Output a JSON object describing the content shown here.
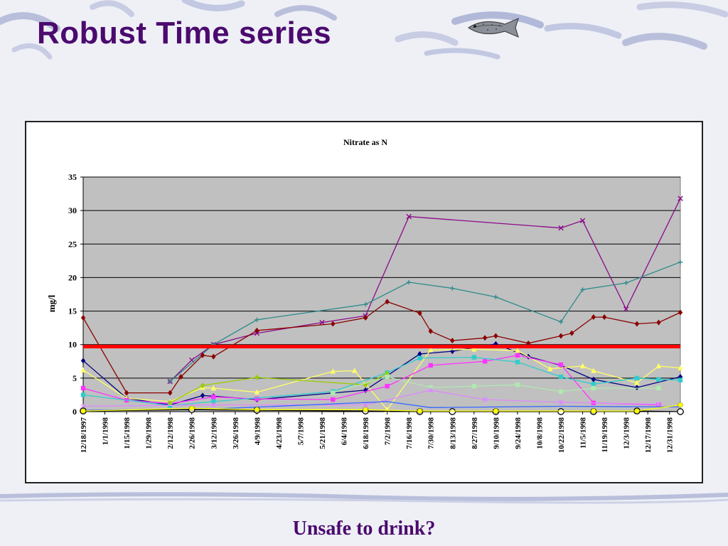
{
  "slide": {
    "title": "Robust Time series",
    "caption": "Unsafe to drink?",
    "title_color": "#4b0a6e"
  },
  "chart_data": {
    "type": "line",
    "title": "Nitrate as N",
    "ylabel": "mg/l",
    "xlabel": "",
    "ylim": [
      0,
      35
    ],
    "yticks": [
      0,
      5,
      10,
      15,
      20,
      25,
      30,
      35
    ],
    "grid": true,
    "legend": "none",
    "plot_background": "#c0c0c0",
    "threshold": {
      "value": 9.7,
      "color": "#ff0000"
    },
    "xticks": [
      "12/18/1997",
      "1/1/1998",
      "1/15/1998",
      "1/29/1998",
      "2/12/1998",
      "2/26/1998",
      "3/12/1998",
      "3/26/1998",
      "4/9/1998",
      "4/23/1998",
      "5/7/1998",
      "5/21/1998",
      "6/4/1998",
      "6/18/1998",
      "7/2/1998",
      "7/16/1998",
      "7/30/1998",
      "8/13/1998",
      "8/27/1998",
      "9/10/1998",
      "9/24/1998",
      "10/8/1998",
      "10/22/1998",
      "11/5/1998",
      "11/19/1998",
      "12/3/1998",
      "12/17/1998",
      "12/31/1998"
    ],
    "series": [
      {
        "color": "#8b0a8b",
        "marker": "x",
        "points": [
          [
            "2/12/1998",
            4.5
          ],
          [
            "2/26/1998",
            7.7
          ],
          [
            "3/12/1998",
            10.0
          ],
          [
            "4/9/1998",
            11.7
          ],
          [
            "5/21/1998",
            13.3
          ],
          [
            "6/18/1998",
            14.3
          ],
          [
            "7/16/1998",
            29.1
          ],
          [
            "10/22/1998",
            27.4
          ],
          [
            "11/5/1998",
            28.5
          ],
          [
            "12/3/1998",
            15.3
          ],
          [
            "1/7/1999",
            31.8
          ]
        ]
      },
      {
        "color": "#2e8b8b",
        "marker": "plus",
        "points": [
          [
            "2/12/1998",
            4.5
          ],
          [
            "3/12/1998",
            10.0
          ],
          [
            "4/9/1998",
            13.7
          ],
          [
            "6/18/1998",
            16.0
          ],
          [
            "7/16/1998",
            19.3
          ],
          [
            "8/13/1998",
            18.4
          ],
          [
            "9/10/1998",
            17.1
          ],
          [
            "10/22/1998",
            13.4
          ],
          [
            "11/5/1998",
            18.2
          ],
          [
            "12/3/1998",
            19.2
          ],
          [
            "1/7/1999",
            22.3
          ]
        ]
      },
      {
        "color": "#8b0000",
        "marker": "diamond",
        "points": [
          [
            "12/18/1997",
            14.0
          ],
          [
            "1/15/1998",
            2.8
          ],
          [
            "2/12/1998",
            2.8
          ],
          [
            "2/19/1998",
            5.2
          ],
          [
            "3/5/1998",
            8.4
          ],
          [
            "3/12/1998",
            8.2
          ],
          [
            "4/9/1998",
            12.1
          ],
          [
            "5/28/1998",
            13.1
          ],
          [
            "6/18/1998",
            14.0
          ],
          [
            "7/2/1998",
            16.4
          ],
          [
            "7/23/1998",
            14.7
          ],
          [
            "7/30/1998",
            12.0
          ],
          [
            "8/13/1998",
            10.6
          ],
          [
            "9/3/1998",
            11.0
          ],
          [
            "9/10/1998",
            11.3
          ],
          [
            "10/1/1998",
            10.2
          ],
          [
            "10/22/1998",
            11.3
          ],
          [
            "10/29/1998",
            11.7
          ],
          [
            "11/12/1998",
            14.1
          ],
          [
            "11/19/1998",
            14.1
          ],
          [
            "12/10/1998",
            13.1
          ],
          [
            "12/24/1998",
            13.3
          ],
          [
            "1/7/1999",
            14.8
          ]
        ]
      },
      {
        "color": "#000080",
        "marker": "diamond",
        "points": [
          [
            "12/18/1997",
            7.6
          ],
          [
            "1/15/1998",
            2.0
          ],
          [
            "2/12/1998",
            1.0
          ],
          [
            "3/5/1998",
            2.4
          ],
          [
            "3/12/1998",
            2.3
          ],
          [
            "4/9/1998",
            1.8
          ],
          [
            "6/18/1998",
            3.2
          ],
          [
            "7/23/1998",
            8.6
          ],
          [
            "8/13/1998",
            9.0
          ],
          [
            "9/10/1998",
            10.1
          ],
          [
            "10/1/1998",
            8.2
          ],
          [
            "10/22/1998",
            6.9
          ],
          [
            "11/12/1998",
            4.8
          ],
          [
            "12/10/1998",
            3.6
          ],
          [
            "1/7/1999",
            5.2
          ]
        ]
      },
      {
        "color": "#ffff66",
        "marker": "triangle",
        "points": [
          [
            "12/18/1997",
            6.2
          ],
          [
            "1/15/1998",
            2.0
          ],
          [
            "2/12/1998",
            1.5
          ],
          [
            "3/5/1998",
            3.6
          ],
          [
            "3/12/1998",
            3.5
          ],
          [
            "4/9/1998",
            2.9
          ],
          [
            "5/28/1998",
            6.0
          ],
          [
            "6/11/1998",
            6.1
          ],
          [
            "7/2/1998",
            0.3
          ],
          [
            "7/30/1998",
            9.2
          ],
          [
            "8/27/1998",
            9.3
          ],
          [
            "9/24/1998",
            9.1
          ],
          [
            "10/15/1998",
            6.4
          ],
          [
            "11/5/1998",
            6.8
          ],
          [
            "11/12/1998",
            6.1
          ],
          [
            "12/10/1998",
            4.3
          ],
          [
            "12/24/1998",
            6.8
          ],
          [
            "1/7/1999",
            6.5
          ]
        ]
      },
      {
        "color": "#ff33ff",
        "marker": "square",
        "points": [
          [
            "12/18/1997",
            3.5
          ],
          [
            "1/15/1998",
            1.7
          ],
          [
            "2/12/1998",
            1.2
          ],
          [
            "3/12/1998",
            2.2
          ],
          [
            "4/9/1998",
            1.9
          ],
          [
            "5/28/1998",
            1.8
          ],
          [
            "7/2/1998",
            3.8
          ],
          [
            "7/30/1998",
            6.9
          ],
          [
            "9/3/1998",
            7.5
          ],
          [
            "9/24/1998",
            8.4
          ],
          [
            "10/22/1998",
            7.0
          ],
          [
            "11/12/1998",
            1.3
          ],
          [
            "12/24/1998",
            1.0
          ]
        ]
      },
      {
        "color": "#33cccc",
        "marker": "square",
        "points": [
          [
            "12/18/1997",
            2.5
          ],
          [
            "2/12/1998",
            0.9
          ],
          [
            "3/12/1998",
            1.5
          ],
          [
            "5/28/1998",
            3.0
          ],
          [
            "7/2/1998",
            5.8
          ],
          [
            "7/23/1998",
            8.0
          ],
          [
            "8/27/1998",
            8.1
          ],
          [
            "9/24/1998",
            7.4
          ],
          [
            "10/22/1998",
            5.2
          ],
          [
            "11/12/1998",
            4.1
          ],
          [
            "12/10/1998",
            5.0
          ],
          [
            "12/24/1998",
            4.8
          ],
          [
            "1/7/1999",
            4.7
          ]
        ]
      },
      {
        "color": "#99cc00",
        "marker": "diamond",
        "points": [
          [
            "2/12/1998",
            1.3
          ],
          [
            "3/5/1998",
            3.9
          ],
          [
            "4/9/1998",
            5.1
          ],
          [
            "6/18/1998",
            4.0
          ],
          [
            "7/2/1998",
            5.7
          ]
        ]
      },
      {
        "color": "#b0e8b0",
        "marker": "square",
        "points": [
          [
            "5/28/1998",
            2.8
          ],
          [
            "7/2/1998",
            5.2
          ],
          [
            "7/30/1998",
            3.6
          ],
          [
            "8/27/1998",
            3.8
          ],
          [
            "9/24/1998",
            4.0
          ],
          [
            "10/22/1998",
            3.0
          ],
          [
            "11/12/1998",
            3.5
          ],
          [
            "12/24/1998",
            3.5
          ]
        ]
      },
      {
        "color": "#dd88ff",
        "marker": "asterisk",
        "points": [
          [
            "12/18/1997",
            0.8
          ],
          [
            "3/12/1998",
            1.0
          ],
          [
            "6/18/1998",
            1.0
          ],
          [
            "7/30/1998",
            3.2
          ],
          [
            "9/3/1998",
            1.8
          ],
          [
            "10/22/1998",
            1.4
          ],
          [
            "12/24/1998",
            1.1
          ]
        ]
      },
      {
        "color": "#3366ff",
        "marker": "none",
        "points": [
          [
            "12/18/1997",
            0.2
          ],
          [
            "3/12/1998",
            0.4
          ],
          [
            "7/2/1998",
            1.5
          ],
          [
            "7/30/1998",
            0.6
          ],
          [
            "10/22/1998",
            0.8
          ],
          [
            "1/7/1999",
            0.7
          ]
        ]
      },
      {
        "color": "#000000",
        "marker": "circle-open",
        "points": [
          [
            "12/18/1997",
            0.1
          ],
          [
            "2/26/1998",
            0.3
          ],
          [
            "4/9/1998",
            0.2
          ],
          [
            "6/18/1998",
            0.1
          ],
          [
            "7/23/1998",
            0.0
          ],
          [
            "8/13/1998",
            0.0
          ],
          [
            "9/10/1998",
            0.0
          ],
          [
            "10/22/1998",
            0.0
          ],
          [
            "11/12/1998",
            0.0
          ],
          [
            "12/10/1998",
            0.1
          ],
          [
            "1/7/1999",
            0.0
          ]
        ]
      },
      {
        "color": "#ffff00",
        "marker": "circle",
        "points": [
          [
            "12/18/1997",
            0.1
          ],
          [
            "2/26/1998",
            0.5
          ],
          [
            "4/9/1998",
            0.3
          ],
          [
            "6/18/1998",
            0.3
          ],
          [
            "7/23/1998",
            0.1
          ],
          [
            "9/10/1998",
            0.1
          ],
          [
            "11/12/1998",
            0.1
          ],
          [
            "12/10/1998",
            0.1
          ],
          [
            "1/7/1999",
            1.0
          ]
        ]
      }
    ]
  }
}
